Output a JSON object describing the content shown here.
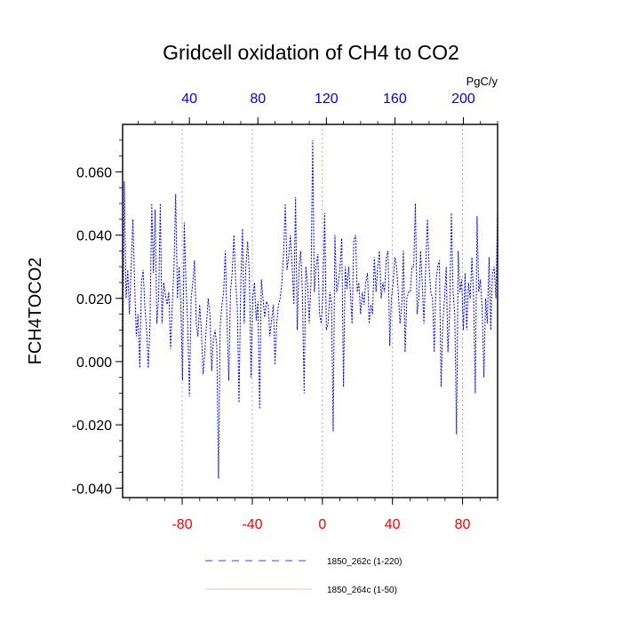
{
  "chart_data": {
    "type": "line",
    "title": "Gridcell oxidation of CH4 to CO2",
    "ylabel": "FCH4TOCO2",
    "units": "PgC/y",
    "ylim": [
      -0.043,
      0.075
    ],
    "yticks": [
      -0.04,
      -0.02,
      0.0,
      0.02,
      0.04,
      0.06
    ],
    "yticklabels": [
      "-0.040",
      "-0.020",
      "0.000",
      "0.020",
      "0.040",
      "0.060"
    ],
    "xlim_bottom": [
      -114,
      100
    ],
    "xticks_bottom": [
      -80,
      -40,
      0,
      40,
      80
    ],
    "xticklabels_bottom": [
      "-80",
      "-40",
      "0",
      "40",
      "80"
    ],
    "xlim_top": [
      1,
      220
    ],
    "xticks_top": [
      40,
      80,
      120,
      160,
      200
    ],
    "xticklabels_top": [
      "40",
      "80",
      "120",
      "160",
      "200"
    ],
    "grid": "vertical dotted lines at bottom-axis ticks",
    "series": [
      {
        "name": "1850_262c (1-220)",
        "color": "#0000ff",
        "style": "dashed",
        "values": [
          -0.003,
          0.057,
          0.02,
          0.029,
          0.015,
          0.03,
          0.045,
          0.025,
          0.008,
          0.015,
          -0.002,
          0.025,
          0.029,
          0.017,
          0.01,
          -0.002,
          0.012,
          0.05,
          0.028,
          0.048,
          0.012,
          0.02,
          0.05,
          0.012,
          0.025,
          0.021,
          0.018,
          0.022,
          0.004,
          0.018,
          0.03,
          0.053,
          0.02,
          0.03,
          0.018,
          -0.006,
          0.044,
          0.025,
          0.012,
          -0.011,
          0.02,
          0.025,
          0.032,
          0.012,
          0.008,
          0.018,
          0.01,
          -0.004,
          0.003,
          0.012,
          0.02,
          0.015,
          -0.003,
          0.007,
          0.01,
          0.005,
          -0.037,
          0.011,
          0.018,
          0.022,
          0.035,
          0.012,
          -0.006,
          0.022,
          0.028,
          0.04,
          0.025,
          0.017,
          -0.013,
          0.025,
          0.042,
          0.012,
          0.03,
          0.038,
          0.028,
          -0.005,
          0.02,
          0.025,
          0.013,
          0.019,
          -0.015,
          0.026,
          0.02,
          0.014,
          0.019,
          0.018,
          0.008,
          0.013,
          0.018,
          -0.001,
          0.012,
          0.018,
          0.02,
          0.025,
          0.034,
          0.05,
          0.029,
          0.033,
          0.04,
          0.03,
          0.018,
          0.052,
          0.01,
          0.03,
          0.035,
          0.022,
          -0.01,
          0.03,
          0.025,
          0.012,
          0.025,
          0.07,
          0.022,
          0.03,
          0.034,
          0.015,
          0.012,
          0.022,
          0.047,
          0.01,
          0.012,
          0.022,
          0.018,
          -0.022,
          0.04,
          0.022,
          0.025,
          0.03,
          0.039,
          -0.008,
          0.03,
          0.023,
          0.03,
          0.022,
          0.012,
          0.038,
          0.04,
          0.022,
          0.025,
          0.015,
          0.022,
          0.018,
          0.025,
          0.028,
          0.012,
          0.018,
          0.015,
          0.033,
          0.022,
          0.03,
          0.035,
          0.02,
          0.025,
          0.022,
          0.033,
          0.035,
          0.005,
          0.02,
          0.025,
          0.033,
          0.03,
          0.022,
          0.012,
          0.018,
          0.035,
          0.003,
          0.02,
          0.022,
          0.022,
          0.03,
          0.03,
          0.05,
          0.015,
          0.02,
          0.035,
          0.025,
          0.012,
          0.03,
          0.045,
          0.03,
          0.022,
          0.02,
          0.003,
          0.025,
          0.03,
          0.032,
          -0.008,
          0.012,
          0.02,
          0.03,
          0.003,
          0.015,
          0.047,
          0.022,
          0.015,
          -0.023,
          0.035,
          0.022,
          0.026,
          0.01,
          0.028,
          0.01,
          0.025,
          0.02,
          0.033,
          0.02,
          -0.01,
          0.046,
          0.022,
          0.026,
          0.016,
          -0.005,
          0.02,
          0.012,
          0.033,
          0.01,
          0.028,
          0.03,
          0.02,
          0.048
        ]
      },
      {
        "name": "1850_264c (1-50)",
        "color": "#ff0000",
        "style": "solid",
        "values": []
      }
    ]
  }
}
